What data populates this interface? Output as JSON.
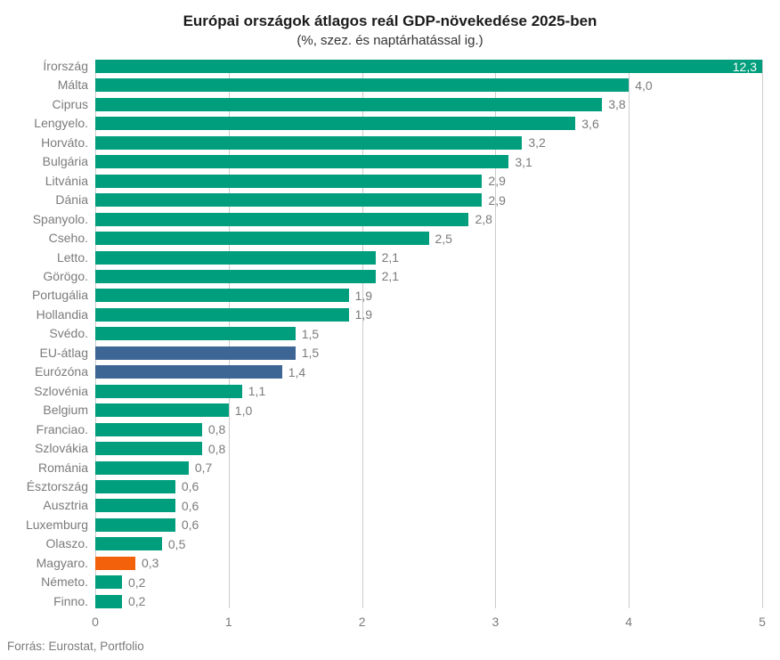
{
  "header": {
    "title": "Európai országok átlagos reál GDP-növekedése 2025-ben",
    "subtitle": "(%, szez. és naptárhatással ig.)"
  },
  "footer": {
    "source": "Forrás: Eurostat, Portfolio"
  },
  "colors": {
    "green": "#009e7c",
    "blue": "#3d6695",
    "orange": "#f3610b",
    "grid": "#cccccc",
    "label_gray": "#7b7b7b",
    "value_inside": "#ffffff"
  },
  "chart_data": {
    "type": "bar",
    "orientation": "horizontal",
    "title": "Európai országok átlagos reál GDP-növekedése 2025-ben",
    "subtitle": "(%, szez. és naptárhatással ig.)",
    "xlim": [
      0,
      5
    ],
    "x_ticks": [
      "0",
      "1",
      "2",
      "3",
      "4",
      "5"
    ],
    "grid": true,
    "categories": [
      "Írország",
      "Málta",
      "Ciprus",
      "Lengyelo.",
      "Horváto.",
      "Bulgária",
      "Litvánia",
      "Dánia",
      "Spanyolo.",
      "Cseho.",
      "Letto.",
      "Görögo.",
      "Portugália",
      "Hollandia",
      "Svédo.",
      "EU-átlag",
      "Eurózóna",
      "Szlovénia",
      "Belgium",
      "Franciao.",
      "Szlovákia",
      "Románia",
      "Észtország",
      "Ausztria",
      "Luxemburg",
      "Olaszo.",
      "Magyaro.",
      "Németo.",
      "Finno."
    ],
    "values": [
      12.3,
      4.0,
      3.8,
      3.6,
      3.2,
      3.1,
      2.9,
      2.9,
      2.8,
      2.5,
      2.1,
      2.1,
      1.9,
      1.9,
      1.5,
      1.5,
      1.4,
      1.1,
      1.0,
      0.8,
      0.8,
      0.7,
      0.6,
      0.6,
      0.6,
      0.5,
      0.3,
      0.2,
      0.2
    ],
    "value_labels": [
      "12,3",
      "4,0",
      "3,8",
      "3,6",
      "3,2",
      "3,1",
      "2,9",
      "2,9",
      "2,8",
      "2,5",
      "2,1",
      "2,1",
      "1,9",
      "1,9",
      "1,5",
      "1,5",
      "1,4",
      "1,1",
      "1,0",
      "0,8",
      "0,8",
      "0,7",
      "0,6",
      "0,6",
      "0,6",
      "0,5",
      "0,3",
      "0,2",
      "0,2"
    ],
    "bar_colors": [
      "green",
      "green",
      "green",
      "green",
      "green",
      "green",
      "green",
      "green",
      "green",
      "green",
      "green",
      "green",
      "green",
      "green",
      "green",
      "blue",
      "blue",
      "green",
      "green",
      "green",
      "green",
      "green",
      "green",
      "green",
      "green",
      "green",
      "orange",
      "green",
      "green"
    ],
    "value_label_inside": [
      true,
      false,
      false,
      false,
      false,
      false,
      false,
      false,
      false,
      false,
      false,
      false,
      false,
      false,
      false,
      false,
      false,
      false,
      false,
      false,
      false,
      false,
      false,
      false,
      false,
      false,
      false,
      false,
      false
    ]
  }
}
